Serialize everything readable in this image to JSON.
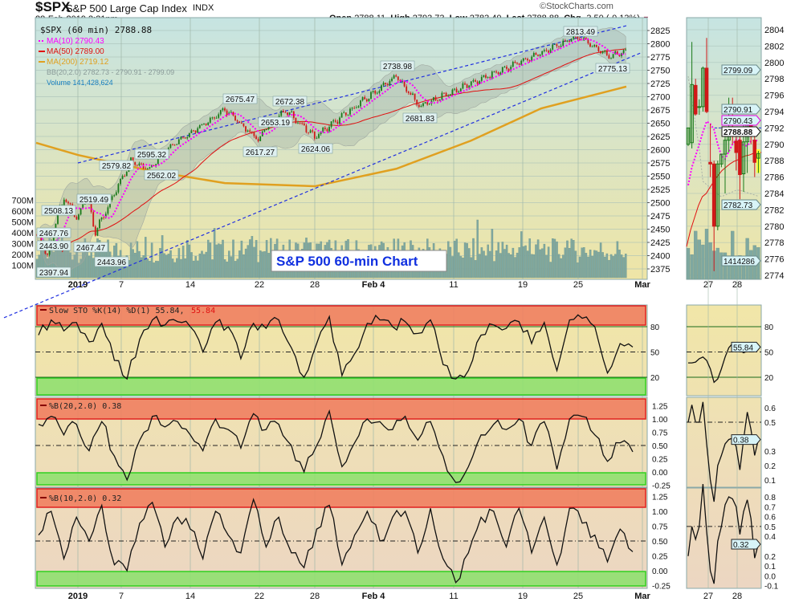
{
  "header": {
    "symbol": "$SPX",
    "name": "S&P 500 Large Cap Index",
    "exchange": "INDX",
    "date": "28-Feb-2019 3:31pm",
    "watermark": "©StockCharts.com",
    "open_label": "Open",
    "open": "2788.11",
    "high_label": "High",
    "high": "2793.73",
    "low_label": "Low",
    "low": "2783.40",
    "last_label": "Last",
    "last": "2788.88",
    "chg_label": "Chg",
    "chg": "-3.50 (-0.13%)"
  },
  "legend": {
    "price": "$SPX (60 min) 2788.88",
    "ma10": "MA(10) 2790.43",
    "ma50": "MA(50) 2789.00",
    "ma200": "MA(200) 2719.12",
    "bb": "BB(20,2.0) 2782.73 - 2790.91 - 2799.09",
    "volume": "Volume 141,428,624"
  },
  "annotation": "S&P 500 60-min Chart",
  "colors": {
    "up": "#1a7a1a",
    "down": "#d01818",
    "ma10": "#ff00ff",
    "ma50": "#e01010",
    "ma200": "#e0a020",
    "bb": "#9aa8a0",
    "volume": "#7fa8a0",
    "trendline": "#2030e0",
    "overbought": "#f08060",
    "oversold": "#90e070"
  },
  "chart_data": [
    {
      "type": "line",
      "panel": "price",
      "scale": "linear",
      "ylim": [
        2375,
        2825
      ],
      "y_ticks": [
        2825,
        2800,
        2775,
        2750,
        2725,
        2700,
        2675,
        2650,
        2625,
        2600,
        2575,
        2550,
        2525,
        2500,
        2475,
        2450,
        2425,
        2400,
        2375
      ],
      "x_ticks": [
        [
          "2019-01-02",
          "2019"
        ],
        [
          "2019-01-07",
          "7"
        ],
        [
          "2019-01-14",
          "14"
        ],
        [
          "2019-01-22",
          "22"
        ],
        [
          "2019-01-28",
          "28"
        ],
        [
          "2019-02-04",
          "Feb 4"
        ],
        [
          "2019-02-11",
          "11"
        ],
        [
          "2019-02-19",
          "19"
        ],
        [
          "2019-02-25",
          "25"
        ],
        [
          "2019-03-01",
          "Mar"
        ]
      ],
      "labeled_points": [
        [
          "2018-12-24",
          2443.9
        ],
        [
          "2018-12-26",
          2397.94
        ],
        [
          "2018-12-27",
          2467.76
        ],
        [
          "2018-12-28",
          2508.13
        ],
        [
          "2019-01-02",
          2467.47
        ],
        [
          "2019-01-03",
          2519.49
        ],
        [
          "2019-01-04",
          2443.96
        ],
        [
          "2019-01-08",
          2579.82
        ],
        [
          "2019-01-10",
          2562.02
        ],
        [
          "2019-01-11",
          2595.32
        ],
        [
          "2019-01-18",
          2675.47
        ],
        [
          "2019-01-22",
          2617.27
        ],
        [
          "2019-01-23",
          2653.19
        ],
        [
          "2019-01-25",
          2672.38
        ],
        [
          "2019-01-28",
          2624.06
        ],
        [
          "2019-02-06",
          2738.98
        ],
        [
          "2019-02-08",
          2681.83
        ],
        [
          "2019-02-25",
          2813.49
        ],
        [
          "2019-02-27",
          2775.13
        ]
      ],
      "last": [
        "2019-02-28",
        2788.88
      ],
      "ma200": [
        [
          "2018-12-24",
          2613
        ],
        [
          "2019-01-02",
          2590
        ],
        [
          "2019-01-10",
          2560
        ],
        [
          "2019-01-18",
          2537
        ],
        [
          "2019-01-28",
          2531
        ],
        [
          "2019-02-06",
          2564
        ],
        [
          "2019-02-13",
          2617
        ],
        [
          "2019-02-21",
          2678
        ],
        [
          "2019-02-28",
          2719.12
        ]
      ],
      "trendlines": [
        [
          [
            "2019-01-02",
            2575
          ],
          [
            "2019-02-28",
            2834
          ]
        ],
        [
          [
            "2018-12-24",
            2308
          ],
          [
            "2019-03-01",
            2784
          ]
        ]
      ],
      "volume_ticks": [
        "700M",
        "600M",
        "500M",
        "400M",
        "300M",
        "200M",
        "100M"
      ]
    },
    {
      "type": "line",
      "panel": "slow-sto",
      "title": "Slow STO %K(14) %D(1) 55.84,",
      "title_d": "55.84",
      "ylim": [
        0,
        100
      ],
      "y_ticks": [
        80,
        50,
        20
      ],
      "values": [
        70,
        88,
        75,
        85,
        62,
        84,
        40,
        18,
        65,
        88,
        82,
        86,
        80,
        50,
        85,
        80,
        42,
        84,
        78,
        88,
        55,
        20,
        60,
        92,
        22,
        48,
        84,
        88,
        80,
        86,
        72,
        88,
        35,
        18,
        28,
        70,
        82,
        78,
        86,
        60,
        85,
        28,
        88,
        90,
        80,
        25,
        60,
        55.84
      ]
    },
    {
      "type": "line",
      "panel": "pctb-20",
      "title": "%B(20,2.0) 0.38",
      "ylim": [
        -0.25,
        1.25
      ],
      "y_ticks": [
        "1.25",
        "1.00",
        "0.75",
        "0.50",
        "0.25",
        "0.00",
        "-0.25"
      ],
      "values": [
        0.9,
        1.05,
        0.7,
        0.9,
        0.4,
        0.95,
        0.3,
        -0.15,
        0.6,
        1.05,
        0.85,
        0.95,
        0.7,
        0.4,
        1.0,
        0.8,
        0.45,
        1.1,
        0.8,
        0.9,
        0.5,
        0.0,
        0.5,
        1.15,
        0.1,
        0.55,
        1.0,
        0.95,
        0.8,
        1.05,
        0.6,
        0.95,
        0.3,
        -0.2,
        0.1,
        0.7,
        0.9,
        0.8,
        1.0,
        0.5,
        0.95,
        0.05,
        1.0,
        1.05,
        0.7,
        0.2,
        0.55,
        0.38
      ]
    },
    {
      "type": "line",
      "panel": "pctb-10",
      "title": "%B(10,2.0) 0.32",
      "ylim": [
        -0.25,
        1.25
      ],
      "y_ticks": [
        "1.25",
        "1.00",
        "0.75",
        "0.50",
        "0.25",
        "0.00",
        "-0.25"
      ],
      "values": [
        0.6,
        1.0,
        0.2,
        0.9,
        0.5,
        1.1,
        0.1,
        0.0,
        0.8,
        1.15,
        0.4,
        0.9,
        0.7,
        0.2,
        1.0,
        0.6,
        0.3,
        1.2,
        0.4,
        0.9,
        0.3,
        0.05,
        0.7,
        1.1,
        0.1,
        0.6,
        1.0,
        0.5,
        0.9,
        1.0,
        0.3,
        1.05,
        0.2,
        -0.2,
        0.3,
        0.9,
        1.0,
        0.4,
        1.05,
        0.3,
        0.9,
        0.1,
        1.05,
        0.8,
        0.6,
        0.15,
        0.7,
        0.32
      ]
    },
    {
      "type": "candlestick",
      "panel": "zoom-price",
      "ylim": [
        2774,
        2804
      ],
      "y_ticks": [
        2804,
        2802,
        2800,
        2798,
        2796,
        2794,
        2792,
        2790,
        2788,
        2786,
        2784,
        2782,
        2780,
        2778,
        2776,
        2774
      ],
      "x_ticks": [
        "27",
        "28"
      ],
      "ohlc": [
        [
          2790,
          2792,
          2789.8,
          2792
        ],
        [
          2790.2,
          2802.5,
          2789.5,
          2797.3
        ],
        [
          2797.2,
          2798,
          2793.5,
          2793.7
        ],
        [
          2794.5,
          2795.5,
          2793.6,
          2794.6
        ],
        [
          2794.6,
          2799.5,
          2794,
          2799.3
        ],
        [
          2799.3,
          2803,
          2793.8,
          2794
        ],
        [
          2787.8,
          2792.5,
          2786,
          2787.6
        ],
        [
          2787.6,
          2788,
          2774.5,
          2780
        ],
        [
          2780,
          2788,
          2779.5,
          2787.6
        ],
        [
          2787.6,
          2788.8,
          2787.2,
          2788.8
        ],
        [
          2788.8,
          2792,
          2784,
          2790.5
        ],
        [
          2790.5,
          2795.7,
          2789,
          2792
        ],
        [
          2792,
          2795.7,
          2790,
          2791.4
        ],
        [
          2790.4,
          2792,
          2786.8,
          2789
        ],
        [
          2790.5,
          2791,
          2783.3,
          2786.3
        ],
        [
          2786.4,
          2792.5,
          2784.2,
          2790.3
        ],
        [
          2790.3,
          2793.5,
          2786.5,
          2793.2
        ],
        [
          2793.2,
          2793.2,
          2790,
          2791
        ],
        [
          2790.5,
          2791.5,
          2786,
          2787.8
        ],
        [
          2788.3,
          2789.2,
          2786.5,
          2788.88
        ]
      ],
      "value_tags": [
        "2799.09",
        "2790.91",
        "2790.43",
        "2788.88",
        "2782.73",
        "1414286"
      ]
    },
    {
      "type": "line",
      "panel": "zoom-slow-sto",
      "ylim": [
        0,
        100
      ],
      "y_ticks": [
        80,
        50,
        20
      ],
      "values": [
        37,
        37,
        38,
        42,
        44,
        40,
        30,
        14,
        18,
        30,
        44,
        55,
        60,
        59,
        52,
        49,
        51,
        56,
        54,
        55.84
      ],
      "value_tag": "55.84"
    },
    {
      "type": "line",
      "panel": "zoom-pctb-20",
      "y_ticks": [
        "0.6",
        "0.5",
        "0.3",
        "0.2",
        "0.1"
      ],
      "values": [
        0.5,
        0.62,
        0.5,
        0.5,
        0.64,
        0.35,
        0.1,
        -0.05,
        0.2,
        0.27,
        0.35,
        0.38,
        0.39,
        0.33,
        0.17,
        0.38,
        0.57,
        0.45,
        0.27,
        0.38
      ],
      "value_tag": "0.38"
    },
    {
      "type": "line",
      "panel": "zoom-pctb-10",
      "y_ticks": [
        "0.8",
        "0.7",
        "0.6",
        "0.5",
        "0.4",
        "0.2",
        "0.1",
        "0.0",
        "-0.1"
      ],
      "values": [
        0.2,
        0.5,
        0.37,
        0.5,
        0.93,
        0.45,
        0.05,
        -0.08,
        0.35,
        0.5,
        0.72,
        0.8,
        0.78,
        0.7,
        0.42,
        0.65,
        0.77,
        0.58,
        0.18,
        0.32
      ],
      "value_tag": "0.32"
    }
  ]
}
